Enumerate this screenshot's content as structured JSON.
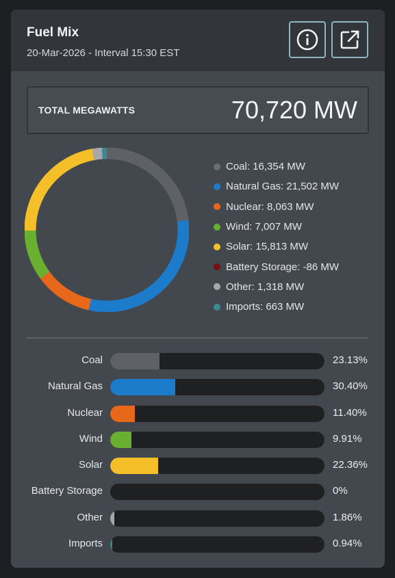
{
  "header": {
    "title": "Fuel Mix",
    "subtitle": "20-Mar-2026 - Interval 15:30 EST",
    "info_icon": "info-icon",
    "external_icon": "external-link-icon"
  },
  "total": {
    "label": "TOTAL MEGAWATTS",
    "value": "70,720 MW"
  },
  "chart_data": [
    {
      "type": "pie",
      "title": "",
      "categories": [
        "Coal",
        "Natural Gas",
        "Nuclear",
        "Wind",
        "Solar",
        "Battery Storage",
        "Other",
        "Imports"
      ],
      "values": [
        16354,
        21502,
        8063,
        7007,
        15813,
        -86,
        1318,
        663
      ],
      "unit": "MW",
      "colors": [
        "#5e6166",
        "#1c7ccb",
        "#e8681b",
        "#69b031",
        "#f5bf2a",
        "#7a1010",
        "#a6a8ab",
        "#3a8a92"
      ],
      "legend": "right"
    },
    {
      "type": "bar",
      "orientation": "horizontal",
      "categories": [
        "Coal",
        "Natural Gas",
        "Nuclear",
        "Wind",
        "Solar",
        "Battery Storage",
        "Other",
        "Imports"
      ],
      "values": [
        23.13,
        30.4,
        11.4,
        9.91,
        22.36,
        0,
        1.86,
        0.94
      ],
      "value_labels": [
        "23.13%",
        "30.40%",
        "11.40%",
        "9.91%",
        "22.36%",
        "0%",
        "1.86%",
        "0.94%"
      ],
      "colors": [
        "#5e6166",
        "#1c7ccb",
        "#e8681b",
        "#69b031",
        "#f5bf2a",
        "#7a1010",
        "#a6a8ab",
        "#3a8a92"
      ],
      "xlim": [
        0,
        100
      ]
    }
  ],
  "legend": [
    {
      "text": "Coal: 16,354 MW",
      "color": "#6a6d72"
    },
    {
      "text": "Natural Gas: 21,502 MW",
      "color": "#1c7ccb"
    },
    {
      "text": "Nuclear: 8,063 MW",
      "color": "#e8681b"
    },
    {
      "text": "Wind: 7,007 MW",
      "color": "#69b031"
    },
    {
      "text": "Solar: 15,813 MW",
      "color": "#f5bf2a"
    },
    {
      "text": "Battery Storage: -86 MW",
      "color": "#7a1010"
    },
    {
      "text": "Other: 1,318 MW",
      "color": "#a6a8ab"
    },
    {
      "text": "Imports: 663 MW",
      "color": "#3a8a92"
    }
  ]
}
